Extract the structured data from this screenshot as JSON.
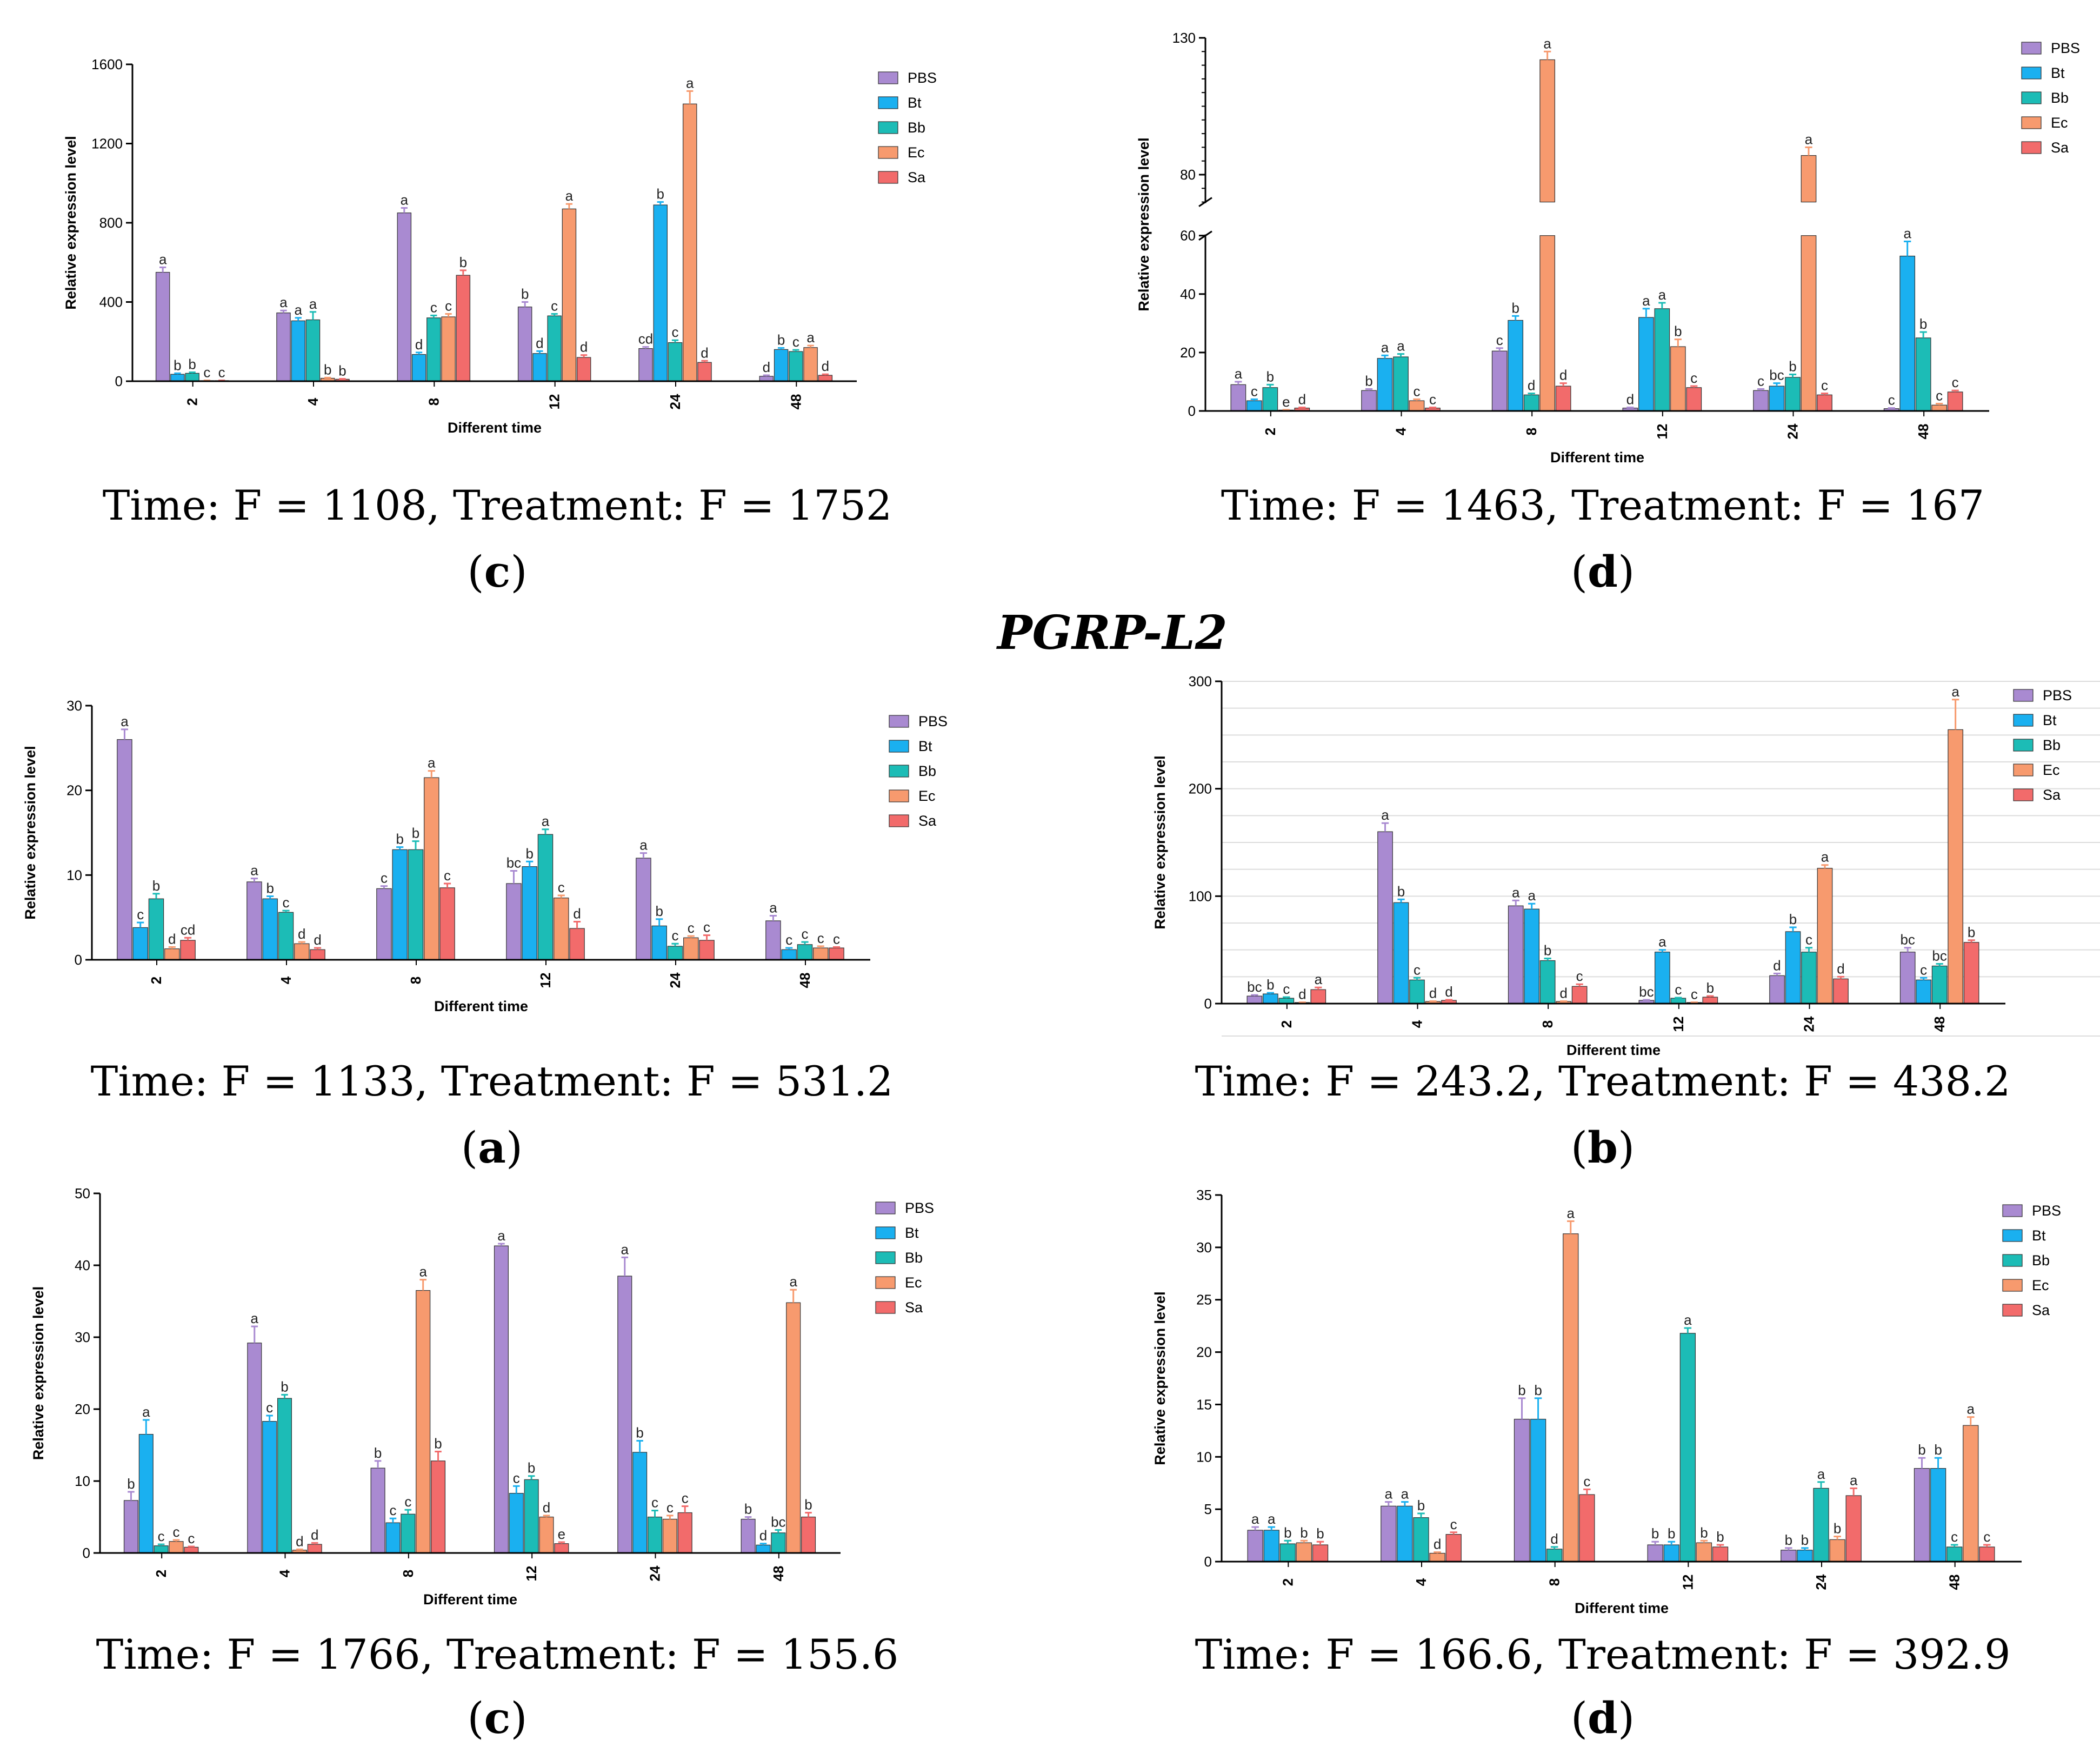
{
  "section_title": "PGRP-L2",
  "panels": [
    {
      "id": "top-c",
      "stat": "Time: F = 1108, Treatment: F = 1752",
      "label": {
        "open": "(",
        "letter": "c",
        "close": ")"
      }
    },
    {
      "id": "top-d",
      "stat": "Time: F = 1463, Treatment: F = 167",
      "label": {
        "open": "(",
        "letter": "d",
        "close": ")"
      }
    },
    {
      "id": "mid-a",
      "stat": "Time: F = 1133, Treatment: F = 531.2",
      "label": {
        "open": "(",
        "letter": "a",
        "close": ")"
      }
    },
    {
      "id": "mid-b",
      "stat": "Time: F = 243.2, Treatment: F = 438.2",
      "label": {
        "open": "(",
        "letter": "b",
        "close": ")"
      }
    },
    {
      "id": "bot-c",
      "stat": "Time: F = 1766, Treatment: F = 155.6",
      "label": {
        "open": "(",
        "letter": "c",
        "close": ")"
      }
    },
    {
      "id": "bot-d",
      "stat": "Time: F = 166.6, Treatment: F = 392.9",
      "label": {
        "open": "(",
        "letter": "d",
        "close": ")"
      }
    }
  ],
  "colors": {
    "PBS": "#a98ad1",
    "Bt": "#1ab0f0",
    "Bb": "#1cbcb6",
    "Ec": "#f79a6e",
    "Sa": "#f26b6b"
  },
  "chart_data": [
    {
      "id": "top-c",
      "type": "bar",
      "xlabel": "Different time",
      "ylabel": "Relative expression level",
      "categories": [
        "2",
        "4",
        "8",
        "12",
        "24",
        "48"
      ],
      "ylim": [
        0,
        1600
      ],
      "yticks": [
        0,
        400,
        800,
        1200,
        1600
      ],
      "legend": [
        "PBS",
        "Bt",
        "Bb",
        "Ec",
        "Sa"
      ],
      "series": [
        {
          "name": "PBS",
          "values": [
            550,
            345,
            850,
            375,
            165,
            25
          ],
          "errors": [
            25,
            12,
            25,
            25,
            8,
            5
          ],
          "letters": [
            "a",
            "a",
            "a",
            "b",
            "cd",
            "d"
          ]
        },
        {
          "name": "Bt",
          "values": [
            35,
            305,
            135,
            140,
            890,
            160
          ],
          "errors": [
            5,
            15,
            10,
            12,
            15,
            8
          ],
          "letters": [
            "b",
            "a",
            "d",
            "d",
            "b",
            "b"
          ]
        },
        {
          "name": "Bb",
          "values": [
            40,
            310,
            320,
            330,
            195,
            150
          ],
          "errors": [
            5,
            40,
            12,
            10,
            12,
            8
          ],
          "letters": [
            "b",
            "a",
            "c",
            "c",
            "c",
            "c"
          ]
        },
        {
          "name": "Ec",
          "values": [
            3,
            15,
            325,
            870,
            1400,
            170
          ],
          "errors": [
            1,
            3,
            15,
            25,
            65,
            10
          ],
          "letters": [
            "c",
            "b",
            "c",
            "a",
            "a",
            "a"
          ]
        },
        {
          "name": "Sa",
          "values": [
            3,
            10,
            535,
            120,
            95,
            30
          ],
          "errors": [
            1,
            2,
            25,
            12,
            8,
            5
          ],
          "letters": [
            "c",
            "b",
            "b",
            "d",
            "d",
            "d"
          ]
        }
      ]
    },
    {
      "id": "top-d",
      "type": "bar",
      "xlabel": "Different time",
      "ylabel": "Relative expression level",
      "categories": [
        "2",
        "4",
        "8",
        "12",
        "24",
        "48"
      ],
      "ylim": [
        0,
        130
      ],
      "axis_break": {
        "lower": [
          0,
          60
        ],
        "upper": [
          70,
          130
        ]
      },
      "yticks": [
        0,
        20,
        40,
        60,
        80,
        130
      ],
      "legend": [
        "PBS",
        "Bt",
        "Bb",
        "Ec",
        "Sa"
      ],
      "series": [
        {
          "name": "PBS",
          "values": [
            9,
            7,
            20.5,
            1,
            7,
            0.8
          ],
          "errors": [
            1,
            0.5,
            1,
            0.2,
            0.5,
            0.2
          ],
          "letters": [
            "a",
            "b",
            "c",
            "d",
            "c",
            "c"
          ]
        },
        {
          "name": "Bt",
          "values": [
            3.5,
            18,
            31,
            32,
            8.5,
            53
          ],
          "errors": [
            0.5,
            1,
            1.5,
            3,
            1,
            5
          ],
          "letters": [
            "c",
            "a",
            "b",
            "a",
            "bc",
            "a"
          ]
        },
        {
          "name": "Bb",
          "values": [
            8,
            18.5,
            5.5,
            35,
            11.5,
            25
          ],
          "errors": [
            1,
            1,
            0.5,
            2,
            1,
            2
          ],
          "letters": [
            "b",
            "a",
            "d",
            "a",
            "b",
            "b"
          ]
        },
        {
          "name": "Ec",
          "values": [
            0.3,
            3.5,
            122,
            22,
            87,
            2
          ],
          "errors": [
            0.1,
            0.5,
            3,
            2.5,
            3,
            0.5
          ],
          "letters": [
            "e",
            "c",
            "a",
            "b",
            "a",
            "c"
          ]
        },
        {
          "name": "Sa",
          "values": [
            1,
            1,
            8.5,
            8,
            5.5,
            6.5
          ],
          "errors": [
            0.2,
            0.2,
            1,
            0.5,
            0.5,
            0.5
          ],
          "letters": [
            "d",
            "c",
            "d",
            "c",
            "c",
            "c"
          ]
        }
      ]
    },
    {
      "id": "mid-a",
      "type": "bar",
      "xlabel": "Different time",
      "ylabel": "Relative expression level",
      "categories": [
        "2",
        "4",
        "8",
        "12",
        "24",
        "48"
      ],
      "ylim": [
        0,
        30
      ],
      "yticks": [
        0,
        10,
        20,
        30
      ],
      "legend": [
        "PBS",
        "Bt",
        "Bb",
        "Ec",
        "Sa"
      ],
      "series": [
        {
          "name": "PBS",
          "values": [
            26,
            9.2,
            8.4,
            9,
            12,
            4.6
          ],
          "errors": [
            1.2,
            0.4,
            0.3,
            1.5,
            0.6,
            0.6
          ],
          "letters": [
            "a",
            "a",
            "c",
            "bc",
            "a",
            "a"
          ]
        },
        {
          "name": "Bt",
          "values": [
            3.8,
            7.2,
            13,
            11,
            4,
            1.2
          ],
          "errors": [
            0.6,
            0.3,
            0.3,
            0.6,
            0.8,
            0.2
          ],
          "letters": [
            "c",
            "b",
            "b",
            "b",
            "b",
            "c"
          ]
        },
        {
          "name": "Bb",
          "values": [
            7.2,
            5.6,
            13,
            14.8,
            1.6,
            1.8
          ],
          "errors": [
            0.6,
            0.2,
            1,
            0.6,
            0.3,
            0.3
          ],
          "letters": [
            "b",
            "c",
            "b",
            "a",
            "c",
            "c"
          ]
        },
        {
          "name": "Ec",
          "values": [
            1.3,
            1.9,
            21.5,
            7.3,
            2.6,
            1.4
          ],
          "errors": [
            0.2,
            0.2,
            0.8,
            0.3,
            0.2,
            0.2
          ],
          "letters": [
            "d",
            "d",
            "a",
            "c",
            "c",
            "c"
          ]
        },
        {
          "name": "Sa",
          "values": [
            2.3,
            1.2,
            8.5,
            3.7,
            2.3,
            1.4
          ],
          "errors": [
            0.3,
            0.2,
            0.5,
            0.8,
            0.6,
            0.1
          ],
          "letters": [
            "cd",
            "d",
            "c",
            "d",
            "c",
            "c"
          ]
        }
      ]
    },
    {
      "id": "mid-b",
      "type": "bar",
      "xlabel": "Different time",
      "ylabel": "Relative expression level",
      "categories": [
        "2",
        "4",
        "8",
        "12",
        "24",
        "48"
      ],
      "ylim": [
        0,
        300
      ],
      "yticks": [
        0,
        100,
        200,
        300
      ],
      "grid": true,
      "legend": [
        "PBS",
        "Bt",
        "Bb",
        "Ec",
        "Sa"
      ],
      "series": [
        {
          "name": "PBS",
          "values": [
            7,
            160,
            91,
            3,
            26,
            48
          ],
          "errors": [
            1,
            8,
            5,
            0.5,
            2,
            4
          ],
          "letters": [
            "bc",
            "a",
            "a",
            "bc",
            "d",
            "bc"
          ]
        },
        {
          "name": "Bt",
          "values": [
            9,
            94,
            88,
            48,
            67,
            22
          ],
          "errors": [
            1,
            3,
            5,
            2,
            4,
            2
          ],
          "letters": [
            "b",
            "b",
            "a",
            "a",
            "b",
            "c"
          ]
        },
        {
          "name": "Bb",
          "values": [
            5,
            22,
            40,
            5,
            48,
            35
          ],
          "errors": [
            1,
            2,
            2,
            0.5,
            4,
            2
          ],
          "letters": [
            "c",
            "c",
            "b",
            "c",
            "c",
            "bc"
          ]
        },
        {
          "name": "Ec",
          "values": [
            1,
            2,
            2,
            1,
            126,
            255
          ],
          "errors": [
            0.2,
            0.2,
            0.2,
            0.2,
            3,
            28
          ],
          "letters": [
            "d",
            "d",
            "d",
            "c",
            "a",
            "a"
          ]
        },
        {
          "name": "Sa",
          "values": [
            13,
            3,
            16,
            6,
            23,
            57
          ],
          "errors": [
            2,
            0.5,
            2,
            1,
            2,
            2
          ],
          "letters": [
            "a",
            "d",
            "c",
            "b",
            "d",
            "b"
          ]
        }
      ]
    },
    {
      "id": "bot-c",
      "type": "bar",
      "xlabel": "Different time",
      "ylabel": "Relative expression level",
      "categories": [
        "2",
        "4",
        "8",
        "12",
        "24",
        "48"
      ],
      "ylim": [
        0,
        50
      ],
      "yticks": [
        0,
        10,
        20,
        30,
        40,
        50
      ],
      "legend": [
        "PBS",
        "Bt",
        "Bb",
        "Ec",
        "Sa"
      ],
      "series": [
        {
          "name": "PBS",
          "values": [
            7.3,
            29.2,
            11.8,
            42.7,
            38.5,
            4.7
          ],
          "errors": [
            1.2,
            2.3,
            1,
            0.3,
            2.6,
            0.3
          ],
          "letters": [
            "b",
            "a",
            "b",
            "a",
            "a",
            "b"
          ]
        },
        {
          "name": "Bt",
          "values": [
            16.5,
            18.3,
            4.2,
            8.3,
            14,
            1.1
          ],
          "errors": [
            2,
            0.8,
            0.6,
            1,
            1.6,
            0.2
          ],
          "letters": [
            "a",
            "c",
            "c",
            "c",
            "b",
            "d"
          ]
        },
        {
          "name": "Bb",
          "values": [
            1,
            21.5,
            5.4,
            10.2,
            5,
            2.8
          ],
          "errors": [
            0.2,
            0.5,
            0.6,
            0.5,
            0.9,
            0.4
          ],
          "letters": [
            "c",
            "b",
            "c",
            "b",
            "c",
            "bc"
          ]
        },
        {
          "name": "Ec",
          "values": [
            1.6,
            0.4,
            36.5,
            5,
            4.7,
            34.8
          ],
          "errors": [
            0.2,
            0.1,
            1.5,
            0.2,
            0.5,
            1.8
          ],
          "letters": [
            "c",
            "d",
            "a",
            "d",
            "c",
            "a"
          ]
        },
        {
          "name": "Sa",
          "values": [
            0.8,
            1.2,
            12.8,
            1.3,
            5.6,
            5
          ],
          "errors": [
            0.1,
            0.2,
            1.3,
            0.2,
            0.9,
            0.6
          ],
          "letters": [
            "c",
            "d",
            "b",
            "e",
            "c",
            "b"
          ]
        }
      ]
    },
    {
      "id": "bot-d",
      "type": "bar",
      "xlabel": "Different time",
      "ylabel": "Relative expression level",
      "categories": [
        "2",
        "4",
        "8",
        "12",
        "24",
        "48"
      ],
      "ylim": [
        0,
        35
      ],
      "yticks": [
        0,
        5,
        10,
        15,
        20,
        25,
        30,
        35
      ],
      "legend": [
        "PBS",
        "Bt",
        "Bb",
        "Ec",
        "Sa"
      ],
      "series": [
        {
          "name": "PBS",
          "values": [
            3,
            5.3,
            13.6,
            1.6,
            1.1,
            8.9
          ],
          "errors": [
            0.3,
            0.4,
            2,
            0.3,
            0.2,
            1
          ],
          "letters": [
            "a",
            "a",
            "b",
            "b",
            "b",
            "b"
          ]
        },
        {
          "name": "Bt",
          "values": [
            3,
            5.3,
            13.6,
            1.6,
            1.1,
            8.9
          ],
          "errors": [
            0.3,
            0.4,
            2,
            0.3,
            0.2,
            1
          ],
          "letters": [
            "a",
            "a",
            "b",
            "b",
            "b",
            "b"
          ]
        },
        {
          "name": "Bb",
          "values": [
            1.7,
            4.2,
            1.2,
            21.8,
            7,
            1.4
          ],
          "errors": [
            0.3,
            0.4,
            0.2,
            0.5,
            0.6,
            0.2
          ],
          "letters": [
            "b",
            "b",
            "d",
            "a",
            "a",
            "c"
          ]
        },
        {
          "name": "Ec",
          "values": [
            1.8,
            0.8,
            31.3,
            1.8,
            2.1,
            13
          ],
          "errors": [
            0.2,
            0.1,
            1.2,
            0.2,
            0.3,
            0.8
          ],
          "letters": [
            "b",
            "d",
            "a",
            "b",
            "b",
            "a"
          ]
        },
        {
          "name": "Sa",
          "values": [
            1.6,
            2.6,
            6.4,
            1.4,
            6.3,
            1.4
          ],
          "errors": [
            0.3,
            0.2,
            0.5,
            0.2,
            0.7,
            0.2
          ],
          "letters": [
            "b",
            "c",
            "c",
            "b",
            "a",
            "c"
          ]
        }
      ]
    }
  ]
}
